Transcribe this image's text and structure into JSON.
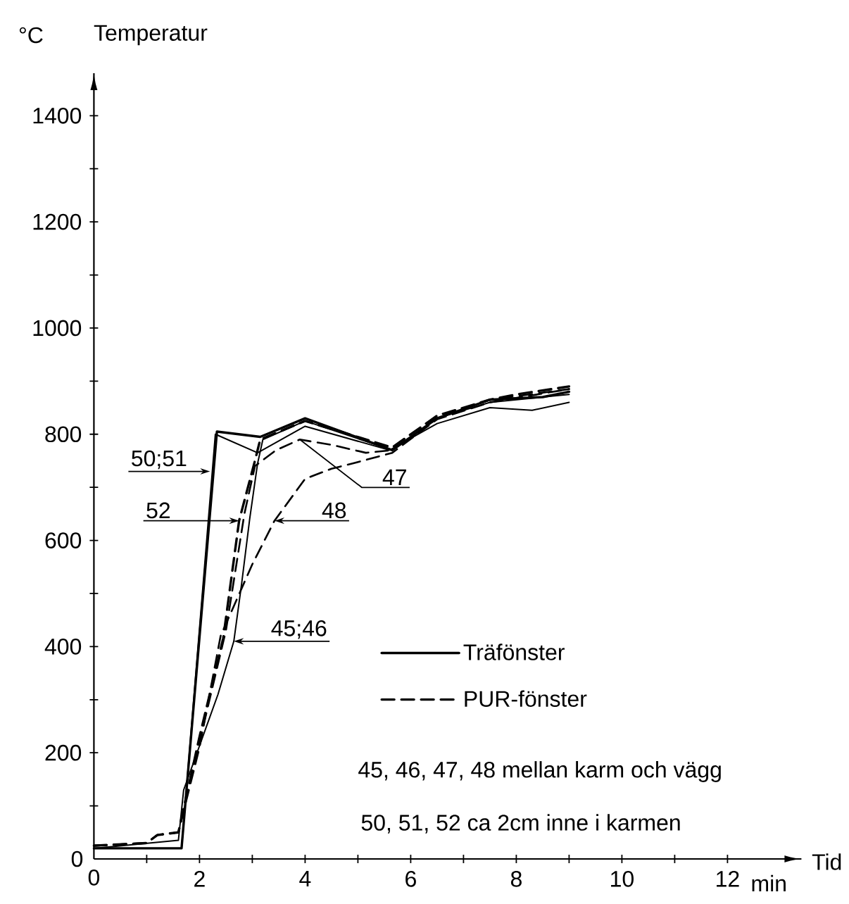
{
  "chart_data": {
    "type": "line",
    "xlabel": "Tid",
    "ylabel": "Temperatur",
    "xlim": [
      0,
      13.4
    ],
    "ylim": [
      0,
      1480
    ],
    "xticks": [
      0,
      {
        "value": 1,
        "label": null
      },
      2,
      {
        "value": 3,
        "label": null
      },
      4,
      {
        "value": 5,
        "label": null
      },
      6,
      {
        "value": 7,
        "label": null
      },
      8,
      {
        "value": 9,
        "label": null
      },
      10,
      {
        "value": 11,
        "label": null
      },
      12
    ],
    "yticks": [
      0,
      {
        "value": 100,
        "label": null
      },
      200,
      {
        "value": 300,
        "label": null
      },
      400,
      {
        "value": 500,
        "label": null
      },
      600,
      {
        "value": 700,
        "label": null
      },
      800,
      {
        "value": 900,
        "label": null
      },
      1000,
      {
        "value": 1100,
        "label": null
      },
      1200,
      {
        "value": 1300,
        "label": null
      },
      1400
    ],
    "legend": "bottom right",
    "series": [
      {
        "name": "Träfönster",
        "color": "#000000",
        "line_style": "solid",
        "x": [
          0,
          1.66,
          2.33,
          3.15,
          4.0,
          5.65,
          6.5,
          7.5,
          8.5,
          9.0
        ],
        "values": [
          20,
          20,
          805,
          795,
          830,
          770,
          830,
          865,
          870,
          880
        ]
      },
      {
        "color": "#000000",
        "line_style": "solid",
        "x": [
          0,
          1.66,
          2.3,
          3.1,
          4.0,
          5.6,
          6.5,
          7.5,
          8.3,
          9.0
        ],
        "values": [
          20,
          20,
          800,
          765,
          815,
          770,
          820,
          850,
          845,
          860
        ]
      },
      {
        "name": "PUR-fönster",
        "color": "#000000",
        "line_style": "dashed",
        "x": [
          0,
          1.0,
          1.2,
          1.6,
          2.0,
          2.45,
          2.75,
          3.05,
          3.15,
          4.0,
          5.65,
          6.5,
          7.5,
          8.0,
          9.0
        ],
        "values": [
          25,
          30,
          45,
          50,
          230,
          416,
          637,
          750,
          790,
          825,
          775,
          835,
          865,
          875,
          890
        ]
      },
      {
        "color": "#000000",
        "line_style": "solid",
        "x": [
          0,
          1.6,
          1.7,
          2.35,
          2.65,
          2.8,
          2.95,
          3.1,
          3.2,
          4.0,
          5.65,
          6.5,
          7.5,
          9.0
        ],
        "values": [
          20,
          35,
          130,
          310,
          410,
          520,
          640,
          745,
          790,
          825,
          770,
          830,
          860,
          875
        ]
      },
      {
        "color": "#000000",
        "line_style": "dashed",
        "x": [
          0,
          1.0,
          1.2,
          1.6,
          2.0,
          2.5,
          2.85,
          3.05,
          3.45,
          3.9,
          4.5,
          5.15,
          5.65,
          6.5,
          7.5,
          9.0
        ],
        "values": [
          25,
          30,
          45,
          50,
          220,
          430,
          650,
          740,
          770,
          790,
          780,
          765,
          770,
          830,
          865,
          885
        ]
      },
      {
        "color": "#000000",
        "line_style": "dashed",
        "x": [
          0,
          1.0,
          1.2,
          1.6,
          2.0,
          2.4,
          2.8,
          3.0,
          3.42,
          4.0,
          4.5,
          4.9,
          5.65,
          6.5,
          7.5,
          9.0
        ],
        "values": [
          25,
          30,
          45,
          50,
          210,
          420,
          510,
          555,
          637,
          716,
          735,
          745,
          765,
          828,
          860,
          885
        ]
      }
    ],
    "annotations": [
      {
        "text": "50;51",
        "x": 2.2,
        "y": 730
      },
      {
        "text": "52",
        "x": 2.75,
        "y": 637
      },
      {
        "text": "48",
        "x": 3.42,
        "y": 637
      },
      {
        "text": "47",
        "x": 3.9,
        "y": 790
      },
      {
        "text": "45;46",
        "x": 2.65,
        "y": 410
      },
      "45, 46, 47, 48 mellan karm och vägg",
      "50, 51, 52 ca 2cm inne i karmen",
      "°C",
      "min"
    ]
  }
}
